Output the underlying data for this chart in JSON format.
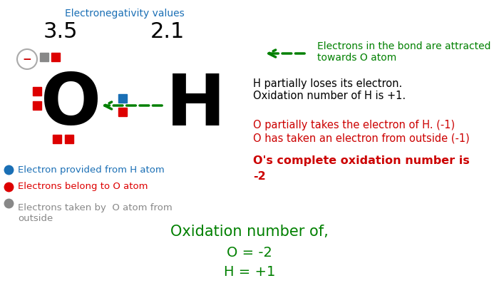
{
  "bg_color": "#ffffff",
  "electronegativity_label": "Electronegativity values",
  "en_color": "#1a6fb5",
  "en_35": "3.5",
  "en_21": "2.1",
  "O_symbol": "O",
  "H_symbol": "H",
  "atom_color": "#000000",
  "dot_red": "#dd0000",
  "dot_blue": "#1a6fb5",
  "dot_gray": "#888888",
  "green_dark": "#008000",
  "red_text": "#cc0000",
  "black": "#000000",
  "text_en_arrow": "Electrons in the bond are attracted\ntowards O atom",
  "text_H_partial": "H partially loses its electron.\nOxidation number of H is +1.",
  "text_O_partial1": "O partially takes the electron of H. (-1)",
  "text_O_partial2": "O has taken an electron from outside (-1)",
  "text_O_complete1": "O's complete oxidation number is",
  "text_O_complete2": "-2",
  "text_oxidation_title": "Oxidation number of,",
  "text_O_eq": "O = -2",
  "text_H_eq": "H = +1",
  "legend_blue_text": "Electron provided from H atom",
  "legend_red_text": "Electrons belong to O atom",
  "legend_gray_text": "Electrons taken by  O atom from\noutside"
}
